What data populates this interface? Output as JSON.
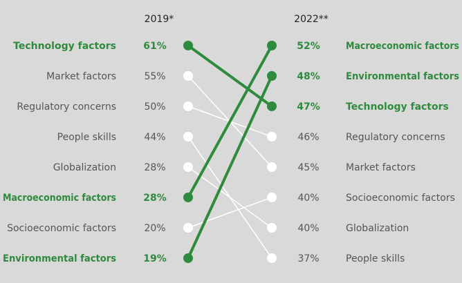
{
  "chart_data": {
    "type": "slope",
    "left_header": "2019*",
    "right_header": "2022**",
    "left": [
      {
        "label": "Technology factors",
        "value": "61%",
        "highlight": true
      },
      {
        "label": "Market factors",
        "value": "55%",
        "highlight": false
      },
      {
        "label": "Regulatory concerns",
        "value": "50%",
        "highlight": false
      },
      {
        "label": "People skills",
        "value": "44%",
        "highlight": false
      },
      {
        "label": "Globalization",
        "value": "28%",
        "highlight": false
      },
      {
        "label": "Macroeconomic factors",
        "value": "28%",
        "highlight": true
      },
      {
        "label": "Socioeconomic factors",
        "value": "20%",
        "highlight": false
      },
      {
        "label": "Environmental factors",
        "value": "19%",
        "highlight": true
      }
    ],
    "right": [
      {
        "label": "Macroeconomic factors",
        "value": "52%",
        "highlight": true
      },
      {
        "label": "Environmental factors",
        "value": "48%",
        "highlight": true
      },
      {
        "label": "Technology factors",
        "value": "47%",
        "highlight": true
      },
      {
        "label": "Regulatory concerns",
        "value": "46%",
        "highlight": false
      },
      {
        "label": "Market factors",
        "value": "45%",
        "highlight": false
      },
      {
        "label": "Socioeconomic factors",
        "value": "40%",
        "highlight": false
      },
      {
        "label": "Globalization",
        "value": "40%",
        "highlight": false
      },
      {
        "label": "People skills",
        "value": "37%",
        "highlight": false
      }
    ],
    "colors": {
      "highlight": "#2e8b3e",
      "normal": "#555555",
      "line_normal": "#ffffff",
      "background": "#d9d9d9"
    }
  }
}
